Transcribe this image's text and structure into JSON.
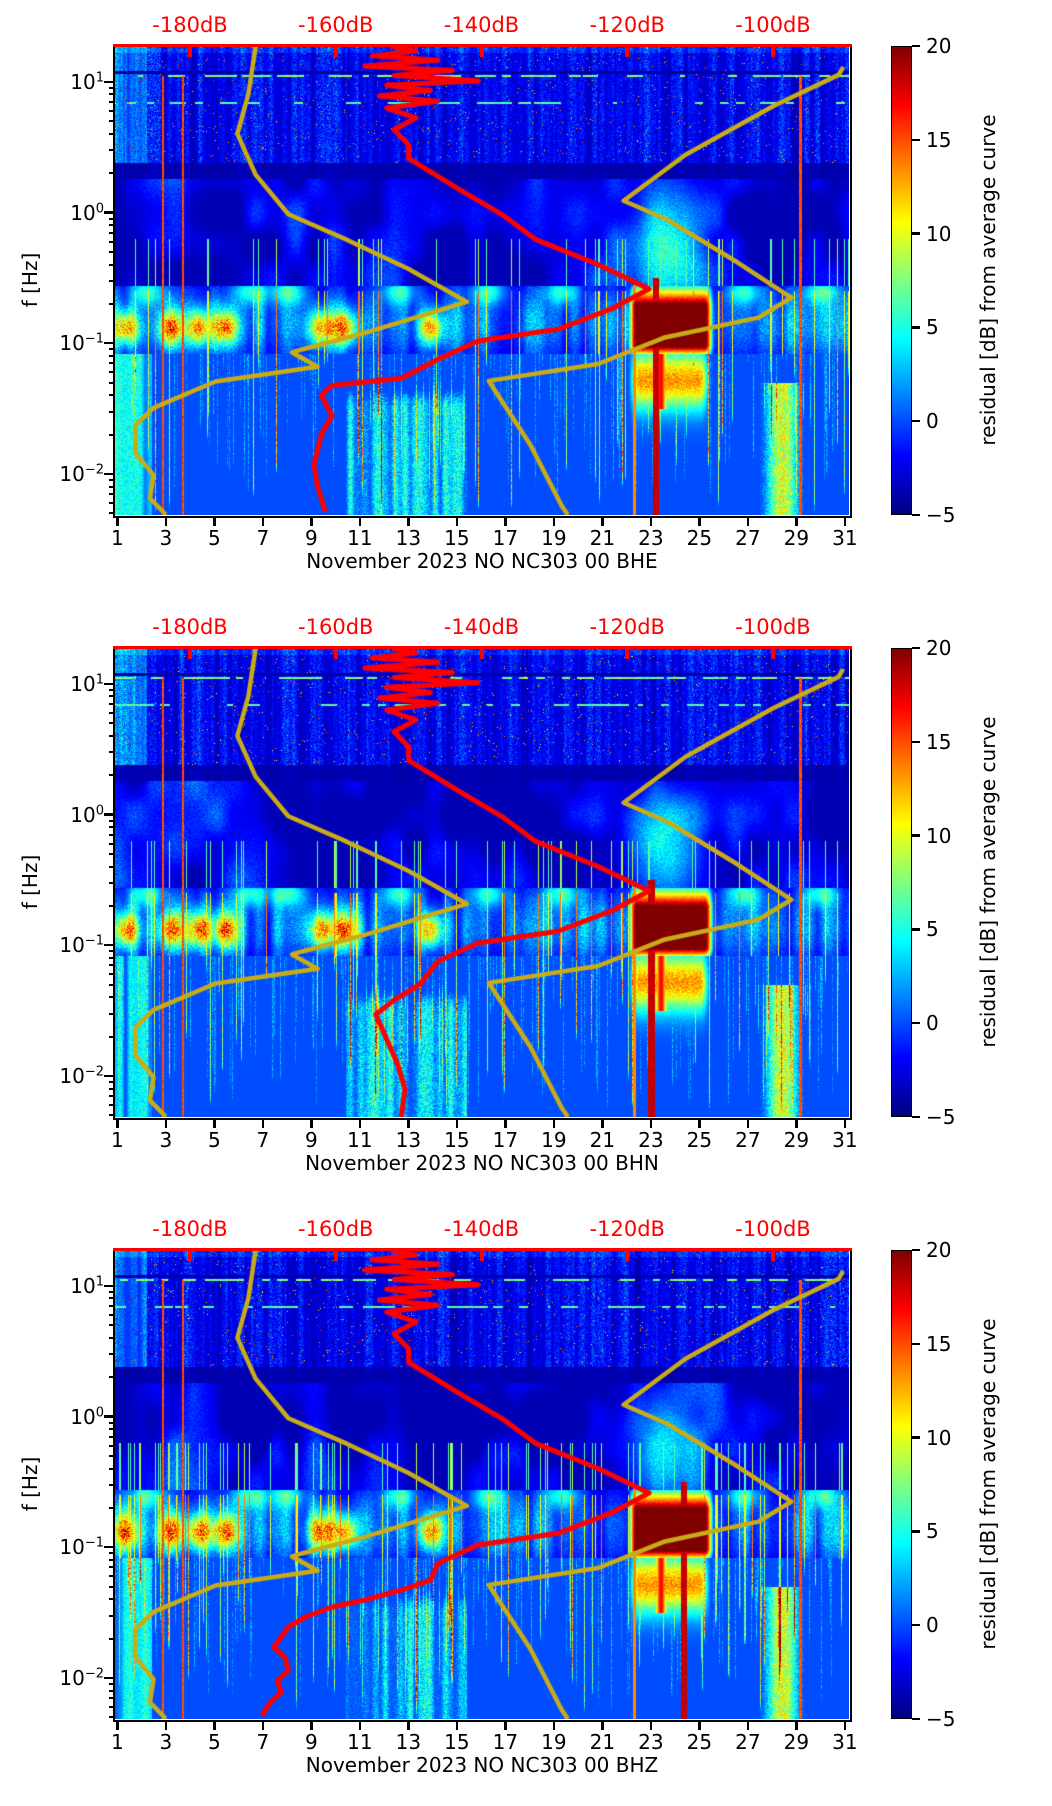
{
  "shared": {
    "ylabel": "f [Hz]",
    "colorbar_label": "residual [dB] from average curve"
  },
  "chart_data": {
    "type": "heatmap",
    "description": "Three stacked seismic PSD-residual spectrograms (station NO NC303 00, channels BHE/BHN/BHZ, November 2023). Heatmap color = residual [dB] from average curve (jet colormap, -5 to 20 dB). Red and dark-yellow overlaid curves are PSD-vs-frequency curves read against the red top dB axis.",
    "colormap": "jet",
    "axes": {
      "x": {
        "unit": "day of month",
        "ticks": [
          1,
          3,
          5,
          7,
          9,
          11,
          13,
          15,
          17,
          19,
          21,
          23,
          25,
          27,
          29,
          31
        ],
        "lim": [
          0.9,
          31.17
        ]
      },
      "y": {
        "label": "f [Hz]",
        "scale": "log",
        "lim": [
          0.00485,
          18.8
        ],
        "ticks": [
          {
            "base": "10",
            "exp": "1",
            "value": 10
          },
          {
            "base": "10",
            "exp": "0",
            "value": 1
          },
          {
            "base": "10",
            "exp": "−1",
            "value": 0.1
          },
          {
            "base": "10",
            "exp": "−2",
            "value": 0.01
          }
        ]
      },
      "top": {
        "unit": "dB",
        "color": "#ff0000",
        "lim": [
          -190.3,
          -89.6
        ],
        "ticks": [
          -180,
          -160,
          -140,
          -120,
          -100
        ],
        "tick_labels": [
          "-180dB",
          "-160dB",
          "-140dB",
          "-120dB",
          "-100dB"
        ]
      }
    },
    "colorbar": {
      "label": "residual [dB] from average curve",
      "vmin": -5,
      "vmax": 20,
      "ticks": [
        20,
        15,
        10,
        5,
        0,
        -5
      ],
      "tick_labels": [
        "20",
        "15",
        "10",
        "5",
        "0",
        "−5"
      ],
      "gradient": [
        "#000080",
        "#0000ff",
        "#00ffff",
        "#ffff00",
        "#ff0000",
        "#800000"
      ],
      "gradient_stops": [
        0,
        12.5,
        37.5,
        62.5,
        87.5,
        100
      ]
    },
    "curve_colors": {
      "red": "#ff0000",
      "yellow": "#c9ac15"
    },
    "texture": {
      "hotspot_days": [
        1.35,
        3.2,
        4.35,
        5.45,
        9.4,
        10.35,
        13.9
      ],
      "upper_blob_days": [
        2.2,
        6.5,
        8.0,
        12.6,
        16.3,
        19.3,
        26.8,
        30.0
      ],
      "microseism": {
        "day_start": 21.95,
        "day_end": 25.55
      },
      "haze_days": [
        10.4,
        15.4
      ],
      "orange_patch": {
        "day_center": 28.4,
        "half_width": 0.75
      },
      "red_line_days": [
        2.85,
        3.7,
        29.15
      ]
    },
    "panels": [
      {
        "channel": "BHE",
        "title": "November 2023 NO NC303 00 BHE",
        "seed": 101,
        "bar_days": [
          23.2,
          22.3
        ],
        "curves": {
          "red": [
            [
              -152,
              18.5
            ],
            [
              -149,
              17.2
            ],
            [
              -155,
              15.8
            ],
            [
              -146,
              14.6
            ],
            [
              -156,
              13.2
            ],
            [
              -144,
              12.2
            ],
            [
              -152,
              11.2
            ],
            [
              -140.5,
              10.2
            ],
            [
              -153,
              9.4
            ],
            [
              -147,
              8.6
            ],
            [
              -154,
              7.8
            ],
            [
              -146,
              7.1
            ],
            [
              -153,
              6.3
            ],
            [
              -149,
              5.3
            ],
            [
              -152,
              4.3
            ],
            [
              -150,
              3.3
            ],
            [
              -150,
              2.6
            ],
            [
              -143,
              1.5
            ],
            [
              -137,
              0.95
            ],
            [
              -132.5,
              0.62
            ],
            [
              -124,
              0.4
            ],
            [
              -117,
              0.26
            ],
            [
              -122,
              0.185
            ],
            [
              -129.5,
              0.128
            ],
            [
              -140.5,
              0.104
            ],
            [
              -146,
              0.075
            ],
            [
              -151,
              0.054
            ],
            [
              -160.5,
              0.0475
            ],
            [
              -162,
              0.04
            ],
            [
              -160.5,
              0.028
            ],
            [
              -162,
              0.02
            ],
            [
              -163,
              0.0118
            ],
            [
              -162.5,
              0.008
            ],
            [
              -161.5,
              0.0053
            ]
          ],
          "yellow_low": [
            [
              -171,
              18.5
            ],
            [
              -172,
              8
            ],
            [
              -173.5,
              4.0
            ],
            [
              -171,
              1.95
            ],
            [
              -166.5,
              0.97
            ],
            [
              -158.5,
              0.62
            ],
            [
              -150,
              0.37
            ],
            [
              -142,
              0.207
            ],
            [
              -156,
              0.12
            ],
            [
              -164.5,
              0.09
            ],
            [
              -166,
              0.085
            ],
            [
              -162.5,
              0.066
            ],
            [
              -176.5,
              0.051
            ],
            [
              -185,
              0.032
            ],
            [
              -187.5,
              0.0235
            ],
            [
              -187.5,
              0.0144
            ],
            [
              -185,
              0.0098
            ],
            [
              -185.5,
              0.0065
            ],
            [
              -183.5,
              0.005
            ]
          ],
          "yellow_high": [
            [
              -90.5,
              12.6
            ],
            [
              -91,
              11.3
            ],
            [
              -100,
              6.5
            ],
            [
              -112,
              2.77
            ],
            [
              -120.5,
              1.23
            ],
            [
              -114.5,
              0.88
            ],
            [
              -105,
              0.42
            ],
            [
              -97.5,
              0.223
            ],
            [
              -102,
              0.157
            ],
            [
              -115,
              0.11
            ],
            [
              -124,
              0.0694
            ],
            [
              -139,
              0.0515
            ],
            [
              -133.3,
              0.0167
            ],
            [
              -129,
              0.0057
            ],
            [
              -128.3,
              0.005
            ]
          ]
        }
      },
      {
        "channel": "BHN",
        "title": "November 2023 NO NC303 00 BHN",
        "seed": 202,
        "bar_days": [
          23.0,
          22.3
        ],
        "curves": {
          "red": [
            [
              -152,
              18.5
            ],
            [
              -149,
              17.2
            ],
            [
              -155,
              15.8
            ],
            [
              -146,
              14.6
            ],
            [
              -156,
              13.2
            ],
            [
              -144,
              12.2
            ],
            [
              -152,
              11.2
            ],
            [
              -140.5,
              10.2
            ],
            [
              -153,
              9.4
            ],
            [
              -147,
              8.6
            ],
            [
              -154,
              7.8
            ],
            [
              -146,
              7.1
            ],
            [
              -153,
              6.3
            ],
            [
              -149,
              5.3
            ],
            [
              -152,
              4.3
            ],
            [
              -150,
              3.3
            ],
            [
              -150,
              2.6
            ],
            [
              -143,
              1.5
            ],
            [
              -137,
              0.95
            ],
            [
              -132.5,
              0.62
            ],
            [
              -124,
              0.4
            ],
            [
              -117,
              0.26
            ],
            [
              -122,
              0.185
            ],
            [
              -129.5,
              0.128
            ],
            [
              -140.5,
              0.104
            ],
            [
              -146,
              0.075
            ],
            [
              -148.5,
              0.05
            ],
            [
              -152,
              0.038
            ],
            [
              -154.5,
              0.0295
            ],
            [
              -153,
              0.019
            ],
            [
              -151.5,
              0.0123
            ],
            [
              -150.5,
              0.0079
            ],
            [
              -151,
              0.005
            ]
          ],
          "yellow_low": [
            [
              -171,
              18.5
            ],
            [
              -172,
              8
            ],
            [
              -173.5,
              4.0
            ],
            [
              -171,
              1.95
            ],
            [
              -166.5,
              0.97
            ],
            [
              -158.5,
              0.62
            ],
            [
              -150,
              0.37
            ],
            [
              -142,
              0.207
            ],
            [
              -156,
              0.12
            ],
            [
              -164.5,
              0.09
            ],
            [
              -166,
              0.085
            ],
            [
              -162.5,
              0.066
            ],
            [
              -176.5,
              0.051
            ],
            [
              -185,
              0.032
            ],
            [
              -187.5,
              0.0235
            ],
            [
              -187.5,
              0.0144
            ],
            [
              -185,
              0.0098
            ],
            [
              -185.5,
              0.0065
            ],
            [
              -183.5,
              0.005
            ]
          ],
          "yellow_high": [
            [
              -90.5,
              12.6
            ],
            [
              -91,
              11.3
            ],
            [
              -100,
              6.5
            ],
            [
              -112,
              2.77
            ],
            [
              -120.5,
              1.23
            ],
            [
              -114.5,
              0.88
            ],
            [
              -105,
              0.42
            ],
            [
              -97.5,
              0.223
            ],
            [
              -102,
              0.157
            ],
            [
              -115,
              0.11
            ],
            [
              -124,
              0.0694
            ],
            [
              -139,
              0.0515
            ],
            [
              -133.3,
              0.0167
            ],
            [
              -129,
              0.0057
            ],
            [
              -128.3,
              0.005
            ]
          ]
        }
      },
      {
        "channel": "BHZ",
        "title": "November 2023 NO NC303 00 BHZ",
        "seed": 303,
        "bar_days": [
          24.35,
          22.3
        ],
        "curves": {
          "red": [
            [
              -152,
              18.5
            ],
            [
              -149,
              17.2
            ],
            [
              -155,
              15.8
            ],
            [
              -146,
              14.6
            ],
            [
              -156,
              13.2
            ],
            [
              -144,
              12.2
            ],
            [
              -152,
              11.2
            ],
            [
              -140.5,
              10.2
            ],
            [
              -153,
              9.4
            ],
            [
              -147,
              8.6
            ],
            [
              -154,
              7.8
            ],
            [
              -146,
              7.1
            ],
            [
              -153,
              6.3
            ],
            [
              -149,
              5.3
            ],
            [
              -152,
              4.3
            ],
            [
              -150,
              3.3
            ],
            [
              -150,
              2.6
            ],
            [
              -143,
              1.5
            ],
            [
              -137,
              0.95
            ],
            [
              -132.5,
              0.62
            ],
            [
              -124,
              0.4
            ],
            [
              -117,
              0.26
            ],
            [
              -122,
              0.185
            ],
            [
              -129.5,
              0.128
            ],
            [
              -140.5,
              0.104
            ],
            [
              -146,
              0.075
            ],
            [
              -147,
              0.056
            ],
            [
              -151,
              0.047
            ],
            [
              -156,
              0.0395
            ],
            [
              -160.5,
              0.0349
            ],
            [
              -164,
              0.0295
            ],
            [
              -166.5,
              0.0246
            ],
            [
              -167.5,
              0.0206
            ],
            [
              -168.5,
              0.0172
            ],
            [
              -167,
              0.0144
            ],
            [
              -166.5,
              0.0114
            ],
            [
              -168,
              0.0096
            ],
            [
              -167.5,
              0.0077
            ],
            [
              -169,
              0.0065
            ],
            [
              -170,
              0.0053
            ]
          ],
          "yellow_low": [
            [
              -171,
              18.5
            ],
            [
              -172,
              8
            ],
            [
              -173.5,
              4.0
            ],
            [
              -171,
              1.95
            ],
            [
              -166.5,
              0.97
            ],
            [
              -158.5,
              0.62
            ],
            [
              -150,
              0.37
            ],
            [
              -142,
              0.207
            ],
            [
              -156,
              0.12
            ],
            [
              -164.5,
              0.09
            ],
            [
              -166,
              0.085
            ],
            [
              -162.5,
              0.066
            ],
            [
              -176.5,
              0.051
            ],
            [
              -185,
              0.032
            ],
            [
              -187.5,
              0.0235
            ],
            [
              -187.5,
              0.0144
            ],
            [
              -185,
              0.0098
            ],
            [
              -185.5,
              0.0065
            ],
            [
              -183.5,
              0.005
            ]
          ],
          "yellow_high": [
            [
              -90.5,
              12.6
            ],
            [
              -91,
              11.3
            ],
            [
              -100,
              6.5
            ],
            [
              -112,
              2.77
            ],
            [
              -120.5,
              1.23
            ],
            [
              -114.5,
              0.88
            ],
            [
              -105,
              0.42
            ],
            [
              -97.5,
              0.223
            ],
            [
              -102,
              0.157
            ],
            [
              -115,
              0.11
            ],
            [
              -124,
              0.0694
            ],
            [
              -139,
              0.0515
            ],
            [
              -133.3,
              0.0167
            ],
            [
              -129,
              0.0057
            ],
            [
              -128.3,
              0.005
            ]
          ]
        }
      }
    ]
  }
}
